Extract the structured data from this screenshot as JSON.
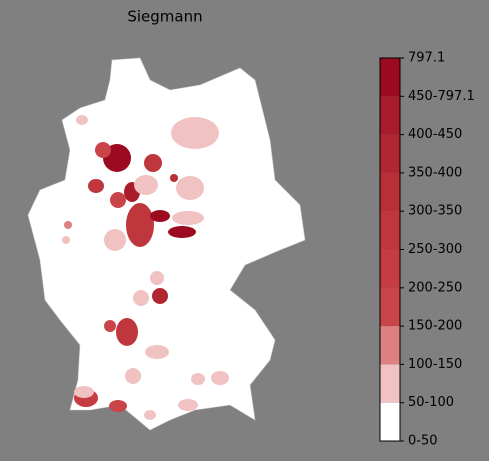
{
  "title": "Siegmann",
  "colorbar": {
    "labels": [
      "0-50",
      "50-100",
      "100-150",
      "150-200",
      "200-250",
      "250-300",
      "300-350",
      "350-400",
      "400-450",
      "450-797.1",
      "797.1"
    ],
    "colors": [
      "#ffffff",
      "#f0c2c2",
      "#dc8080",
      "#c94449",
      "#c53d42",
      "#bf363c",
      "#b82f37",
      "#b02631",
      "#a81c2b",
      "#9b0a21"
    ]
  }
}
